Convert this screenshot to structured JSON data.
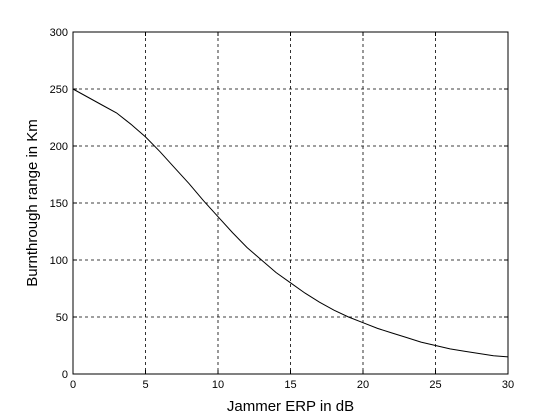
{
  "chart_data": {
    "type": "line",
    "xlabel": "Jammer ERP in dB",
    "ylabel": "Burnthrough range in Km",
    "xlim": [
      0,
      30
    ],
    "ylim": [
      0,
      300
    ],
    "xticks": [
      0,
      5,
      10,
      15,
      20,
      25,
      30
    ],
    "yticks": [
      0,
      50,
      100,
      150,
      200,
      250,
      300
    ],
    "grid": true,
    "grid_style": "dashed",
    "line_color": "#000000",
    "series": [
      {
        "x": [
          0,
          1,
          2,
          3,
          4,
          5,
          6,
          7,
          8,
          9,
          10,
          11,
          12,
          13,
          14,
          15,
          16,
          17,
          18,
          19,
          20,
          21,
          22,
          23,
          24,
          25,
          26,
          27,
          28,
          29,
          30
        ],
        "values": [
          250,
          243,
          236,
          229,
          219,
          208,
          195,
          181,
          167,
          152,
          138,
          124,
          111,
          100,
          89,
          80,
          71,
          63,
          56,
          50,
          45,
          40,
          36,
          32,
          28,
          25,
          22,
          20,
          18,
          16,
          15
        ]
      }
    ]
  }
}
